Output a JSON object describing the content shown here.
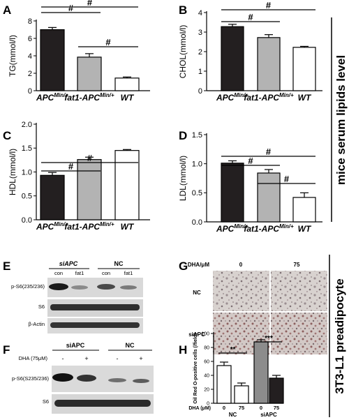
{
  "side_labels": {
    "top": "mice serum lipids level",
    "bottom": "3T3-L1 preadipocyte"
  },
  "colors": {
    "black": "#231f20",
    "gray": "#b3b3b3",
    "white": "#ffffff"
  },
  "sig_mark": "#",
  "chart_data": [
    {
      "panel": "A",
      "type": "bar",
      "ylabel": "TG(mmol/l)",
      "categories": [
        "APC",
        "fat1-APC",
        "WT"
      ],
      "category_sup": [
        "Min/+",
        "Min/+",
        ""
      ],
      "values": [
        7.0,
        3.85,
        1.45
      ],
      "errors": [
        0.25,
        0.4,
        0.12
      ],
      "ylim": [
        0,
        8
      ],
      "yticks": [
        "0",
        "2",
        "4",
        "6",
        "8"
      ],
      "sig": [
        {
          "from": 0,
          "to": 1,
          "label": "#"
        },
        {
          "from": 0,
          "to": 2,
          "label": "#"
        },
        {
          "from": 1,
          "to": 2,
          "label": "#"
        }
      ]
    },
    {
      "panel": "B",
      "type": "bar",
      "ylabel": "CHOL(mmol/l)",
      "categories": [
        "APC",
        "fat1-APC",
        "WT"
      ],
      "category_sup": [
        "Min/+",
        "Min/+",
        ""
      ],
      "values": [
        3.28,
        2.72,
        2.22
      ],
      "errors": [
        0.12,
        0.15,
        0.05
      ],
      "ylim": [
        0,
        4
      ],
      "yticks": [
        "0",
        "1",
        "2",
        "3",
        "4"
      ],
      "sig": [
        {
          "from": 0,
          "to": 1,
          "label": "#"
        },
        {
          "from": 0,
          "to": 2,
          "label": "#"
        }
      ]
    },
    {
      "panel": "C",
      "type": "bar",
      "ylabel": "HDL(mmol/l)",
      "categories": [
        "APC",
        "fat1-APC",
        "WT"
      ],
      "category_sup": [
        "Min/+",
        "Min/+",
        ""
      ],
      "values": [
        0.93,
        1.26,
        1.45
      ],
      "errors": [
        0.06,
        0.05,
        0.02
      ],
      "ylim": [
        0,
        2.0
      ],
      "yticks": [
        "0.0",
        "0.5",
        "1.0",
        "1.5",
        "2.0"
      ],
      "sig": [
        {
          "from": 0,
          "to": 1,
          "label": "#"
        },
        {
          "from": 0,
          "to": 2,
          "label": "#"
        }
      ]
    },
    {
      "panel": "D",
      "type": "bar",
      "ylabel": "LDL(mmol/l)",
      "categories": [
        "APC",
        "fat1-APC",
        "WT"
      ],
      "category_sup": [
        "Min/+",
        "Min/+",
        ""
      ],
      "values": [
        1.01,
        0.84,
        0.42
      ],
      "errors": [
        0.04,
        0.06,
        0.08
      ],
      "ylim": [
        0,
        1.5
      ],
      "yticks": [
        "0.0",
        "0.5",
        "1.0",
        "1.5"
      ],
      "sig": [
        {
          "from": 0,
          "to": 1,
          "label": "#"
        },
        {
          "from": 0,
          "to": 2,
          "label": "#"
        },
        {
          "from": 1,
          "to": 2,
          "label": "#"
        }
      ]
    },
    {
      "panel": "H",
      "type": "bar",
      "ylabel": "Oil Red O-positive cells (/field)",
      "xlabel_prefix": "DHA (μM)",
      "categories": [
        "0",
        "75",
        "0",
        "75"
      ],
      "groups": [
        "NC",
        "siAPC"
      ],
      "values": [
        54,
        25,
        88,
        36
      ],
      "errors": [
        5,
        4,
        3,
        4
      ],
      "bar_colors": [
        "#ffffff",
        "#ffffff",
        "#8c8c8c",
        "#231f20"
      ],
      "ylim": [
        0,
        100
      ],
      "yticks": [
        "0",
        "20",
        "40",
        "60",
        "80",
        "100"
      ],
      "sig": [
        {
          "from": 0,
          "to": 1,
          "label": "**"
        },
        {
          "from": 2,
          "to": 3,
          "label": "***"
        }
      ]
    }
  ],
  "blot_E": {
    "panel": "E",
    "groups": [
      "siAPC",
      "NC"
    ],
    "lanes": [
      "con",
      "fat1",
      "con",
      "fat1"
    ],
    "rows": [
      "p-S6(235/236)",
      "S6",
      "β-Actin"
    ]
  },
  "blot_F": {
    "panel": "F",
    "groups": [
      "siAPC",
      "NC"
    ],
    "treatment_label": "DHA (75μM)",
    "lanes": [
      "-",
      "+",
      "-",
      "+"
    ],
    "rows": [
      "p-S6(S235/236)",
      "S6"
    ]
  },
  "micro_G": {
    "panel": "G",
    "header": "DHA/μM",
    "cols": [
      "0",
      "75"
    ],
    "rows": [
      "NC",
      "siAPC"
    ]
  }
}
